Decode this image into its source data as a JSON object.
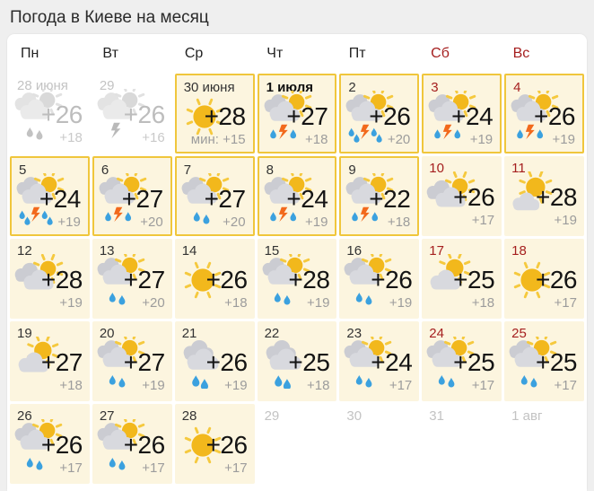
{
  "page": {
    "title": "Погода в Киеве на месяц"
  },
  "colors": {
    "page_bg": "#efefef",
    "card_bg": "#ffffff",
    "cell_bg": "#fcf5df",
    "accent_border": "#f0c63c",
    "weekend_red": "#a51f1f",
    "sun": "#f2b81c",
    "sun_ray": "#f5c93e",
    "cloud_front": "#d8d9de",
    "cloud_back": "#cbccd2",
    "rain_drop": "#3ba1df",
    "lightning": "#f2691c"
  },
  "weekdays": [
    {
      "label": "Пн",
      "weekend": false
    },
    {
      "label": "Вт",
      "weekend": false
    },
    {
      "label": "Ср",
      "weekend": false
    },
    {
      "label": "Чт",
      "weekend": false
    },
    {
      "label": "Пт",
      "weekend": false
    },
    {
      "label": "Сб",
      "weekend": true
    },
    {
      "label": "Вс",
      "weekend": true
    }
  ],
  "cells": [
    {
      "date": "28 июня",
      "state": "past",
      "weekend": false,
      "bold": false,
      "icon": "sun-cloud-rain",
      "temp": "+26",
      "low": "+18"
    },
    {
      "date": "29",
      "state": "past",
      "weekend": false,
      "bold": false,
      "icon": "sun-cloud-thunder",
      "temp": "+26",
      "low": "+16"
    },
    {
      "date": "30 июня",
      "state": "today",
      "weekend": false,
      "bold": false,
      "icon": "sun",
      "temp": "+28",
      "low": "мин: +15"
    },
    {
      "date": "1 июля",
      "state": "highlight",
      "weekend": false,
      "bold": true,
      "icon": "sun-cloud-thunder-rain",
      "temp": "+27",
      "low": "+18"
    },
    {
      "date": "2",
      "state": "highlight",
      "weekend": false,
      "bold": false,
      "icon": "sun-cloud-thunder-heavyrain",
      "temp": "+26",
      "low": "+20"
    },
    {
      "date": "3",
      "state": "highlight",
      "weekend": true,
      "bold": false,
      "icon": "sun-cloud-thunder-rain",
      "temp": "+24",
      "low": "+19"
    },
    {
      "date": "4",
      "state": "highlight",
      "weekend": true,
      "bold": false,
      "icon": "sun-cloud-thunder-rain",
      "temp": "+26",
      "low": "+19"
    },
    {
      "date": "5",
      "state": "highlight",
      "weekend": false,
      "bold": false,
      "icon": "sun-cloud-thunder-heavyrain",
      "temp": "+24",
      "low": "+19"
    },
    {
      "date": "6",
      "state": "highlight",
      "weekend": false,
      "bold": false,
      "icon": "sun-cloud-thunder-rain",
      "temp": "+27",
      "low": "+20"
    },
    {
      "date": "7",
      "state": "highlight",
      "weekend": false,
      "bold": false,
      "icon": "sun-cloud-rain",
      "temp": "+27",
      "low": "+20"
    },
    {
      "date": "8",
      "state": "highlight",
      "weekend": false,
      "bold": false,
      "icon": "sun-cloud-thunder-rain",
      "temp": "+24",
      "low": "+19"
    },
    {
      "date": "9",
      "state": "highlight",
      "weekend": false,
      "bold": false,
      "icon": "sun-cloud-thunder-rain",
      "temp": "+22",
      "low": "+18"
    },
    {
      "date": "10",
      "state": "normal",
      "weekend": true,
      "bold": false,
      "icon": "cloud-sun",
      "temp": "+26",
      "low": "+17"
    },
    {
      "date": "11",
      "state": "normal",
      "weekend": true,
      "bold": false,
      "icon": "mostly-sunny",
      "temp": "+28",
      "low": "+19"
    },
    {
      "date": "12",
      "state": "normal",
      "weekend": false,
      "bold": false,
      "icon": "cloud-sun",
      "temp": "+28",
      "low": "+19"
    },
    {
      "date": "13",
      "state": "normal",
      "weekend": false,
      "bold": false,
      "icon": "sun-cloud-rain",
      "temp": "+27",
      "low": "+20"
    },
    {
      "date": "14",
      "state": "normal",
      "weekend": false,
      "bold": false,
      "icon": "sun",
      "temp": "+26",
      "low": "+18"
    },
    {
      "date": "15",
      "state": "normal",
      "weekend": false,
      "bold": false,
      "icon": "sun-cloud-rain",
      "temp": "+28",
      "low": "+19"
    },
    {
      "date": "16",
      "state": "normal",
      "weekend": false,
      "bold": false,
      "icon": "sun-cloud-rain",
      "temp": "+26",
      "low": "+19"
    },
    {
      "date": "17",
      "state": "normal",
      "weekend": true,
      "bold": false,
      "icon": "sun-cloud",
      "temp": "+25",
      "low": "+18"
    },
    {
      "date": "18",
      "state": "normal",
      "weekend": true,
      "bold": false,
      "icon": "sun",
      "temp": "+26",
      "low": "+17"
    },
    {
      "date": "19",
      "state": "normal",
      "weekend": false,
      "bold": false,
      "icon": "sun-cloud",
      "temp": "+27",
      "low": "+18"
    },
    {
      "date": "20",
      "state": "normal",
      "weekend": false,
      "bold": false,
      "icon": "sun-cloud-rain",
      "temp": "+27",
      "low": "+19"
    },
    {
      "date": "21",
      "state": "normal",
      "weekend": false,
      "bold": false,
      "icon": "cloud-rain",
      "temp": "+26",
      "low": "+19"
    },
    {
      "date": "22",
      "state": "normal",
      "weekend": false,
      "bold": false,
      "icon": "cloud-rain",
      "temp": "+25",
      "low": "+18"
    },
    {
      "date": "23",
      "state": "normal",
      "weekend": false,
      "bold": false,
      "icon": "sun-cloud-rain",
      "temp": "+24",
      "low": "+17"
    },
    {
      "date": "24",
      "state": "normal",
      "weekend": true,
      "bold": false,
      "icon": "sun-cloud-rain",
      "temp": "+25",
      "low": "+17"
    },
    {
      "date": "25",
      "state": "normal",
      "weekend": true,
      "bold": false,
      "icon": "sun-cloud-rain",
      "temp": "+25",
      "low": "+17"
    },
    {
      "date": "26",
      "state": "normal",
      "weekend": false,
      "bold": false,
      "icon": "sun-cloud-rain",
      "temp": "+26",
      "low": "+17"
    },
    {
      "date": "27",
      "state": "normal",
      "weekend": false,
      "bold": false,
      "icon": "sun-cloud-rain",
      "temp": "+26",
      "low": "+17"
    },
    {
      "date": "28",
      "state": "normal",
      "weekend": false,
      "bold": false,
      "icon": "sun",
      "temp": "+26",
      "low": "+17"
    },
    {
      "date": "29",
      "state": "next",
      "weekend": false,
      "bold": false,
      "icon": "",
      "temp": "",
      "low": ""
    },
    {
      "date": "30",
      "state": "next",
      "weekend": false,
      "bold": false,
      "icon": "",
      "temp": "",
      "low": ""
    },
    {
      "date": "31",
      "state": "next",
      "weekend": false,
      "bold": false,
      "icon": "",
      "temp": "",
      "low": ""
    },
    {
      "date": "1 авг",
      "state": "next",
      "weekend": false,
      "bold": false,
      "icon": "",
      "temp": "",
      "low": ""
    }
  ]
}
